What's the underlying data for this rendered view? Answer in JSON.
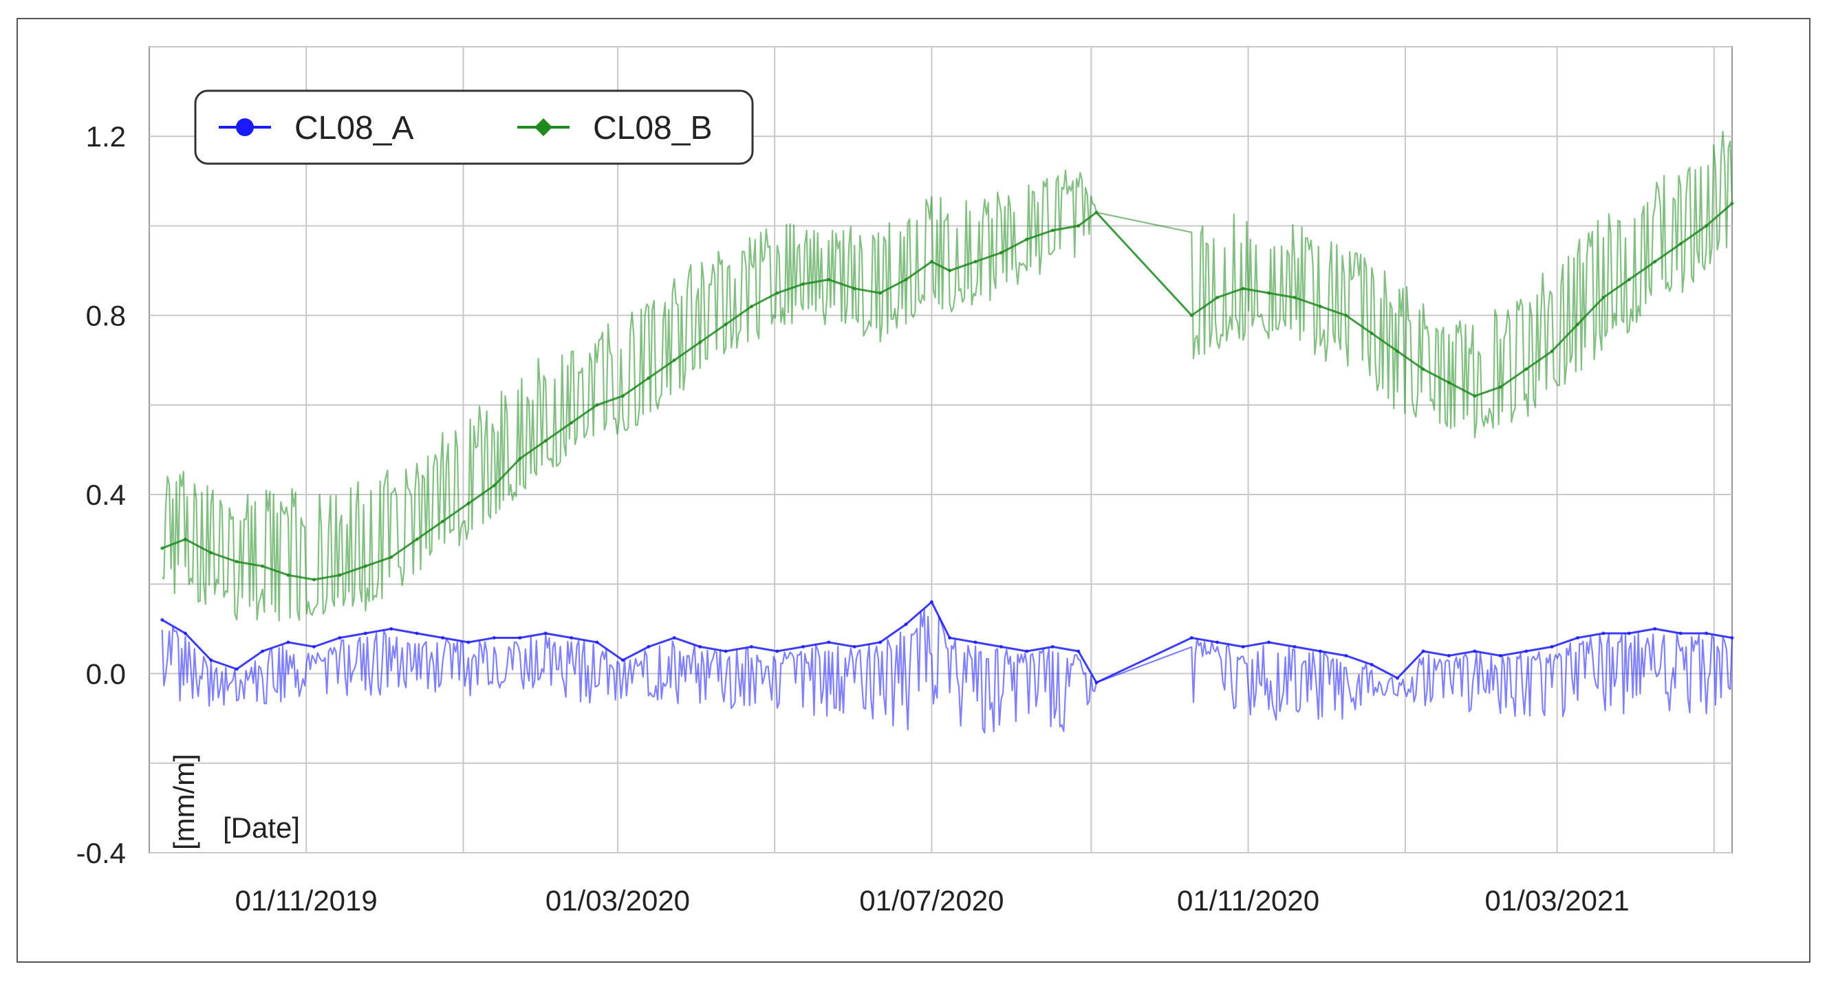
{
  "chart_data": {
    "type": "line",
    "title": "",
    "xlabel": "[Date]",
    "ylabel": "[mm/m]",
    "ylim": [
      -0.4,
      1.4
    ],
    "xlim": [
      "2019-09-01",
      "2021-05-08"
    ],
    "y_ticks": [
      1.2,
      0.8,
      0.4,
      0.0,
      -0.4
    ],
    "y_tick_labels": [
      "1.2",
      "0.8",
      "0.4",
      "0.0",
      "-0.4"
    ],
    "x_ticks": [
      "2019-11-01",
      "2020-03-01",
      "2020-07-01",
      "2020-11-01",
      "2021-03-01"
    ],
    "x_tick_labels": [
      "01/11/2019",
      "01/03/2020",
      "01/07/2020",
      "01/11/2020",
      "01/03/2021"
    ],
    "grid": true,
    "legend_position": "top-left",
    "series": [
      {
        "name": "CL08_A",
        "color": "#1a1aff",
        "marker": "circle",
        "x": [
          "2019-09-06",
          "2019-09-15",
          "2019-09-25",
          "2019-10-05",
          "2019-10-15",
          "2019-10-25",
          "2019-11-04",
          "2019-11-14",
          "2019-11-24",
          "2019-12-04",
          "2019-12-14",
          "2019-12-24",
          "2020-01-03",
          "2020-01-13",
          "2020-01-23",
          "2020-02-02",
          "2020-02-12",
          "2020-02-22",
          "2020-03-03",
          "2020-03-13",
          "2020-03-23",
          "2020-04-02",
          "2020-04-12",
          "2020-04-22",
          "2020-05-02",
          "2020-05-12",
          "2020-05-22",
          "2020-06-01",
          "2020-06-11",
          "2020-06-21",
          "2020-07-01",
          "2020-07-08",
          "2020-07-18",
          "2020-07-28",
          "2020-08-07",
          "2020-08-17",
          "2020-08-27",
          "2020-09-03",
          "2020-10-10",
          "2020-10-20",
          "2020-10-30",
          "2020-11-09",
          "2020-11-19",
          "2020-11-29",
          "2020-12-09",
          "2020-12-19",
          "2020-12-29",
          "2021-01-08",
          "2021-01-18",
          "2021-01-28",
          "2021-02-07",
          "2021-02-17",
          "2021-02-27",
          "2021-03-09",
          "2021-03-19",
          "2021-03-29",
          "2021-04-08",
          "2021-04-18",
          "2021-04-28",
          "2021-05-08"
        ],
        "y": [
          0.12,
          0.09,
          0.03,
          0.01,
          0.05,
          0.07,
          0.06,
          0.08,
          0.09,
          0.1,
          0.09,
          0.08,
          0.07,
          0.08,
          0.08,
          0.09,
          0.08,
          0.07,
          0.03,
          0.06,
          0.08,
          0.06,
          0.05,
          0.06,
          0.05,
          0.06,
          0.07,
          0.06,
          0.07,
          0.11,
          0.16,
          0.08,
          0.07,
          0.06,
          0.05,
          0.06,
          0.05,
          -0.02,
          0.08,
          0.07,
          0.06,
          0.07,
          0.06,
          0.05,
          0.04,
          0.02,
          -0.01,
          0.05,
          0.04,
          0.05,
          0.04,
          0.05,
          0.06,
          0.08,
          0.09,
          0.09,
          0.1,
          0.09,
          0.09,
          0.08
        ],
        "lo": [
          -0.05,
          -0.07,
          -0.09,
          -0.08,
          -0.07,
          -0.06,
          -0.05,
          -0.05,
          -0.05,
          -0.05,
          -0.04,
          -0.05,
          -0.05,
          -0.04,
          -0.05,
          -0.06,
          -0.06,
          -0.07,
          -0.07,
          -0.06,
          -0.08,
          -0.07,
          -0.09,
          -0.08,
          -0.09,
          -0.09,
          -0.1,
          -0.11,
          -0.12,
          -0.13,
          -0.1,
          -0.11,
          -0.13,
          -0.14,
          -0.13,
          -0.14,
          -0.13,
          -0.02,
          -0.08,
          -0.1,
          -0.1,
          -0.11,
          -0.1,
          -0.12,
          -0.1,
          -0.05,
          -0.06,
          -0.08,
          -0.09,
          -0.1,
          -0.09,
          -0.1,
          -0.1,
          -0.09,
          -0.09,
          -0.1,
          -0.09,
          -0.09,
          -0.1,
          -0.11
        ]
      },
      {
        "name": "CL08_B",
        "color": "#1e8a1e",
        "marker": "diamond",
        "x": [
          "2019-09-06",
          "2019-09-15",
          "2019-09-25",
          "2019-10-05",
          "2019-10-15",
          "2019-10-25",
          "2019-11-04",
          "2019-11-14",
          "2019-11-24",
          "2019-12-04",
          "2019-12-14",
          "2019-12-24",
          "2020-01-03",
          "2020-01-13",
          "2020-01-23",
          "2020-02-02",
          "2020-02-12",
          "2020-02-22",
          "2020-03-03",
          "2020-03-13",
          "2020-03-23",
          "2020-04-02",
          "2020-04-12",
          "2020-04-22",
          "2020-05-02",
          "2020-05-12",
          "2020-05-22",
          "2020-06-01",
          "2020-06-11",
          "2020-06-21",
          "2020-07-01",
          "2020-07-08",
          "2020-07-18",
          "2020-07-28",
          "2020-08-07",
          "2020-08-17",
          "2020-08-27",
          "2020-09-03",
          "2020-10-10",
          "2020-10-20",
          "2020-10-30",
          "2020-11-09",
          "2020-11-19",
          "2020-11-29",
          "2020-12-09",
          "2020-12-19",
          "2020-12-29",
          "2021-01-08",
          "2021-01-18",
          "2021-01-28",
          "2021-02-07",
          "2021-02-17",
          "2021-02-27",
          "2021-03-09",
          "2021-03-19",
          "2021-03-29",
          "2021-04-08",
          "2021-04-18",
          "2021-04-28",
          "2021-05-08"
        ],
        "y": [
          0.28,
          0.3,
          0.27,
          0.25,
          0.24,
          0.22,
          0.21,
          0.22,
          0.24,
          0.26,
          0.3,
          0.34,
          0.38,
          0.42,
          0.48,
          0.52,
          0.56,
          0.6,
          0.62,
          0.66,
          0.7,
          0.74,
          0.78,
          0.82,
          0.85,
          0.87,
          0.88,
          0.86,
          0.85,
          0.88,
          0.92,
          0.9,
          0.92,
          0.94,
          0.97,
          0.99,
          1.0,
          1.03,
          0.8,
          0.84,
          0.86,
          0.85,
          0.84,
          0.82,
          0.8,
          0.76,
          0.72,
          0.68,
          0.65,
          0.62,
          0.64,
          0.68,
          0.72,
          0.78,
          0.84,
          0.88,
          0.92,
          0.96,
          1.0,
          1.05
        ],
        "lo": [
          0.18,
          0.17,
          0.15,
          0.12,
          0.12,
          0.11,
          0.13,
          0.13,
          0.14,
          0.18,
          0.22,
          0.26,
          0.3,
          0.35,
          0.4,
          0.44,
          0.48,
          0.52,
          0.53,
          0.56,
          0.6,
          0.65,
          0.7,
          0.74,
          0.76,
          0.78,
          0.78,
          0.76,
          0.73,
          0.78,
          0.82,
          0.8,
          0.82,
          0.84,
          0.87,
          0.9,
          0.92,
          1.0,
          0.68,
          0.72,
          0.74,
          0.74,
          0.73,
          0.7,
          0.68,
          0.64,
          0.58,
          0.56,
          0.53,
          0.52,
          0.55,
          0.57,
          0.62,
          0.66,
          0.72,
          0.76,
          0.8,
          0.84,
          0.9,
          0.96
        ],
        "hi": [
          0.44,
          0.46,
          0.42,
          0.4,
          0.41,
          0.42,
          0.4,
          0.42,
          0.44,
          0.46,
          0.5,
          0.54,
          0.58,
          0.64,
          0.68,
          0.72,
          0.76,
          0.78,
          0.8,
          0.86,
          0.9,
          0.92,
          0.96,
          0.98,
          1.01,
          1.02,
          1.0,
          1.01,
          1.02,
          1.05,
          1.1,
          1.06,
          1.08,
          1.09,
          1.1,
          1.12,
          1.13,
          1.05,
          1.03,
          1.01,
          1.04,
          1.02,
          1.01,
          0.99,
          0.96,
          0.92,
          0.88,
          0.84,
          0.8,
          0.79,
          0.82,
          0.86,
          0.92,
          0.98,
          1.03,
          1.06,
          1.1,
          1.14,
          1.2,
          1.26
        ]
      }
    ],
    "legend": [
      {
        "label": "CL08_A",
        "color": "#1a1aff",
        "marker": "circle"
      },
      {
        "label": "CL08_B",
        "color": "#1e8a1e",
        "marker": "diamond"
      }
    ]
  }
}
